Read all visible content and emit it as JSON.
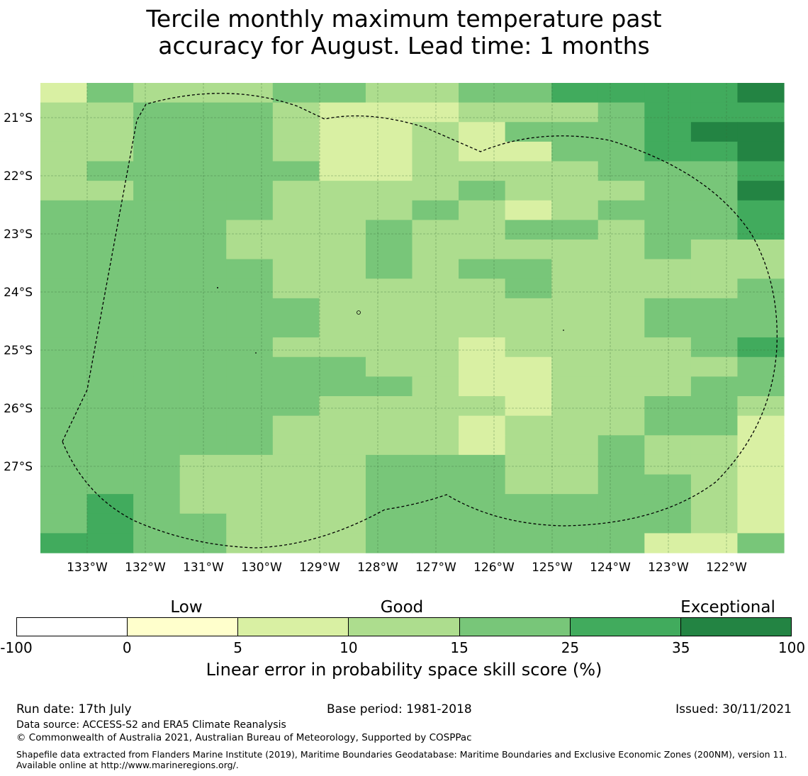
{
  "title_line1": "Tercile monthly maximum temperature past",
  "title_line2": "accuracy for August. Lead time: 1 months",
  "map": {
    "lon_labels": [
      "133°W",
      "132°W",
      "131°W",
      "130°W",
      "129°W",
      "128°W",
      "127°W",
      "126°W",
      "125°W",
      "124°W",
      "123°W",
      "122°W"
    ],
    "lat_labels": [
      "21°S",
      "22°S",
      "23°S",
      "24°S",
      "25°S",
      "26°S",
      "27°S"
    ],
    "grid": [
      [
        2,
        4,
        3,
        3,
        3,
        4,
        4,
        3,
        3,
        4,
        4,
        5,
        5,
        5,
        5,
        6
      ],
      [
        3,
        3,
        4,
        4,
        4,
        3,
        2,
        2,
        2,
        3,
        3,
        3,
        4,
        5,
        5,
        5
      ],
      [
        3,
        3,
        4,
        4,
        4,
        3,
        2,
        2,
        3,
        2,
        4,
        4,
        4,
        5,
        6,
        6
      ],
      [
        3,
        3,
        4,
        4,
        4,
        3,
        2,
        2,
        3,
        2,
        2,
        4,
        4,
        5,
        5,
        6
      ],
      [
        3,
        4,
        4,
        4,
        4,
        4,
        2,
        2,
        3,
        3,
        3,
        3,
        4,
        4,
        4,
        5
      ],
      [
        3,
        3,
        4,
        4,
        4,
        3,
        3,
        3,
        3,
        4,
        3,
        3,
        3,
        4,
        4,
        6
      ],
      [
        4,
        4,
        4,
        4,
        4,
        3,
        3,
        3,
        4,
        3,
        2,
        3,
        4,
        4,
        4,
        5
      ],
      [
        4,
        4,
        4,
        4,
        3,
        3,
        3,
        4,
        3,
        3,
        4,
        4,
        3,
        4,
        4,
        5
      ],
      [
        4,
        4,
        4,
        4,
        3,
        3,
        3,
        4,
        3,
        3,
        3,
        3,
        3,
        4,
        3,
        3
      ],
      [
        4,
        4,
        4,
        4,
        4,
        3,
        3,
        4,
        3,
        4,
        4,
        3,
        3,
        3,
        3,
        3
      ],
      [
        4,
        4,
        4,
        4,
        4,
        3,
        3,
        3,
        3,
        3,
        4,
        3,
        3,
        3,
        3,
        4
      ],
      [
        4,
        4,
        4,
        4,
        4,
        4,
        3,
        3,
        3,
        3,
        3,
        3,
        3,
        4,
        4,
        4
      ],
      [
        4,
        4,
        4,
        4,
        4,
        4,
        3,
        3,
        3,
        3,
        3,
        3,
        3,
        4,
        4,
        4
      ],
      [
        4,
        4,
        4,
        4,
        4,
        3,
        3,
        3,
        3,
        2,
        3,
        3,
        3,
        3,
        4,
        5
      ],
      [
        4,
        4,
        4,
        4,
        4,
        4,
        4,
        3,
        3,
        2,
        2,
        3,
        3,
        3,
        3,
        4
      ],
      [
        4,
        4,
        4,
        4,
        4,
        4,
        4,
        4,
        3,
        2,
        2,
        3,
        3,
        3,
        4,
        4
      ],
      [
        4,
        4,
        4,
        4,
        4,
        4,
        3,
        3,
        3,
        3,
        2,
        3,
        3,
        4,
        4,
        3
      ],
      [
        4,
        4,
        4,
        4,
        4,
        3,
        3,
        3,
        3,
        2,
        3,
        3,
        3,
        4,
        4,
        2
      ],
      [
        4,
        4,
        4,
        4,
        4,
        3,
        3,
        3,
        3,
        2,
        3,
        3,
        4,
        3,
        3,
        2
      ],
      [
        4,
        4,
        4,
        3,
        3,
        3,
        3,
        4,
        4,
        4,
        3,
        3,
        4,
        3,
        3,
        2
      ],
      [
        4,
        4,
        4,
        3,
        3,
        3,
        3,
        4,
        4,
        4,
        3,
        3,
        4,
        4,
        3,
        2
      ],
      [
        4,
        5,
        4,
        3,
        3,
        3,
        3,
        4,
        4,
        4,
        4,
        4,
        4,
        4,
        3,
        2
      ],
      [
        4,
        5,
        4,
        4,
        3,
        3,
        3,
        4,
        4,
        4,
        4,
        4,
        4,
        4,
        3,
        2
      ],
      [
        5,
        5,
        4,
        4,
        3,
        3,
        3,
        4,
        4,
        4,
        4,
        4,
        4,
        2,
        2,
        4
      ]
    ]
  },
  "colorbar": {
    "colors": [
      "#ffffff",
      "#ffffcc",
      "#d9f0a3",
      "#addd8e",
      "#78c679",
      "#41ab5d",
      "#238443"
    ],
    "ticks": [
      "-100",
      "0",
      "5",
      "10",
      "15",
      "25",
      "35",
      "100"
    ],
    "categories": [
      "Low",
      "Good",
      "Exceptional"
    ],
    "label": "Linear error in probability space skill score (%)"
  },
  "footer": {
    "run_date": "Run date: 17th July",
    "base_period": "Base period: 1981-2018",
    "issued": "Issued: 30/11/2021",
    "data_source": "Data source: ACCESS-S2 and ERA5 Climate Reanalysis",
    "copyright": "© Commonwealth of Australia 2021, Australian Bureau of Meteorology, Supported by COSPPac",
    "shapefile": "Shapefile data extracted from Flanders Marine Institute (2019), Maritime Boundaries Geodatabase: Maritime Boundaries and Exclusive Economic Zones (200NM), version 11. Available online at http://www.marineregions.org/."
  }
}
